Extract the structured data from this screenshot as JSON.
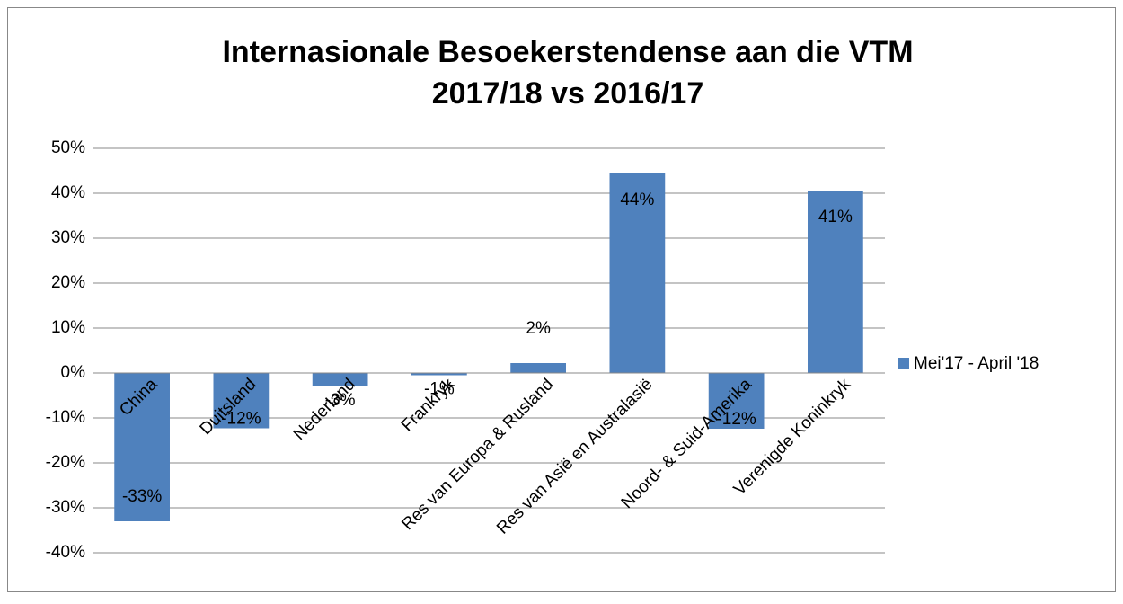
{
  "chart_data": {
    "type": "bar",
    "title": "Internasionale Besoekerstendense aan die VTM",
    "subtitle": "2017/18 vs 2016/17",
    "categories": [
      "China",
      "Duitsland",
      "Nederland",
      "Frankryk",
      "Res van Europa & Rusland",
      "Res van Asië en Australasië",
      "Noord- & Suid-Amerika",
      "Verenigde Koninkryk"
    ],
    "series": [
      {
        "name": "Mei'17 - April '18",
        "color": "#4f81bd",
        "values": [
          -33,
          -12.3,
          -3,
          -0.5,
          2.2,
          44.4,
          -12.4,
          40.6
        ],
        "value_labels": [
          "-33%",
          "-12%",
          "-3%",
          "-1%",
          "2%",
          "44%",
          "-12%",
          "41%"
        ]
      }
    ],
    "ylim": [
      -40,
      50
    ],
    "yticks": [
      {
        "value": -40,
        "label": "-40%"
      },
      {
        "value": -30,
        "label": "-30%"
      },
      {
        "value": -20,
        "label": "-20%"
      },
      {
        "value": -10,
        "label": "-10%"
      },
      {
        "value": 0,
        "label": "0%"
      },
      {
        "value": 10,
        "label": "10%"
      },
      {
        "value": 20,
        "label": "20%"
      },
      {
        "value": 30,
        "label": "30%"
      },
      {
        "value": 40,
        "label": "40%"
      },
      {
        "value": 50,
        "label": "50%"
      }
    ],
    "grid": true,
    "legend": "right"
  }
}
